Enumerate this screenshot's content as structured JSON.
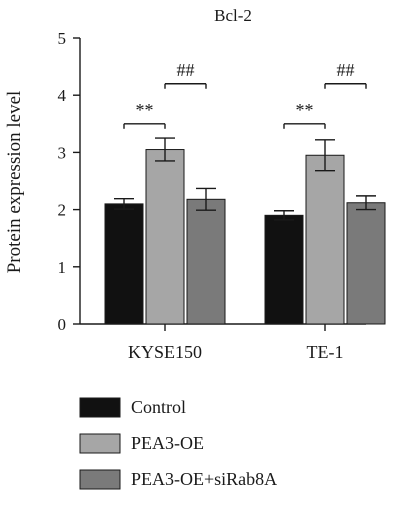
{
  "chart_data": {
    "type": "bar",
    "title": "Bcl-2",
    "xlabel": "",
    "ylabel": "Protein expression level",
    "ylim": [
      0,
      5
    ],
    "yticks": [
      0,
      1,
      2,
      3,
      4,
      5
    ],
    "categories": [
      "KYSE150",
      "TE-1"
    ],
    "series": [
      {
        "name": "Control",
        "values": [
          2.1,
          1.9
        ],
        "errors": [
          0.09,
          0.08
        ],
        "color": "#111111"
      },
      {
        "name": "PEA3-OE",
        "values": [
          3.05,
          2.95
        ],
        "errors": [
          0.2,
          0.27
        ],
        "color": "#a6a6a6"
      },
      {
        "name": "PEA3-OE+siRab8A",
        "values": [
          2.18,
          2.12
        ],
        "errors": [
          0.19,
          0.12
        ],
        "color": "#7a7a7a"
      }
    ],
    "annotations": [
      {
        "label": "**",
        "category": "KYSE150",
        "between": [
          "Control",
          "PEA3-OE"
        ],
        "y": 3.5
      },
      {
        "label": "##",
        "category": "KYSE150",
        "between": [
          "PEA3-OE",
          "PEA3-OE+siRab8A"
        ],
        "y": 4.2
      },
      {
        "label": "**",
        "category": "TE-1",
        "between": [
          "Control",
          "PEA3-OE"
        ],
        "y": 3.5
      },
      {
        "label": "##",
        "category": "TE-1",
        "between": [
          "PEA3-OE",
          "PEA3-OE+siRab8A"
        ],
        "y": 4.2
      }
    ],
    "legend_position": "bottom",
    "grid": false
  }
}
